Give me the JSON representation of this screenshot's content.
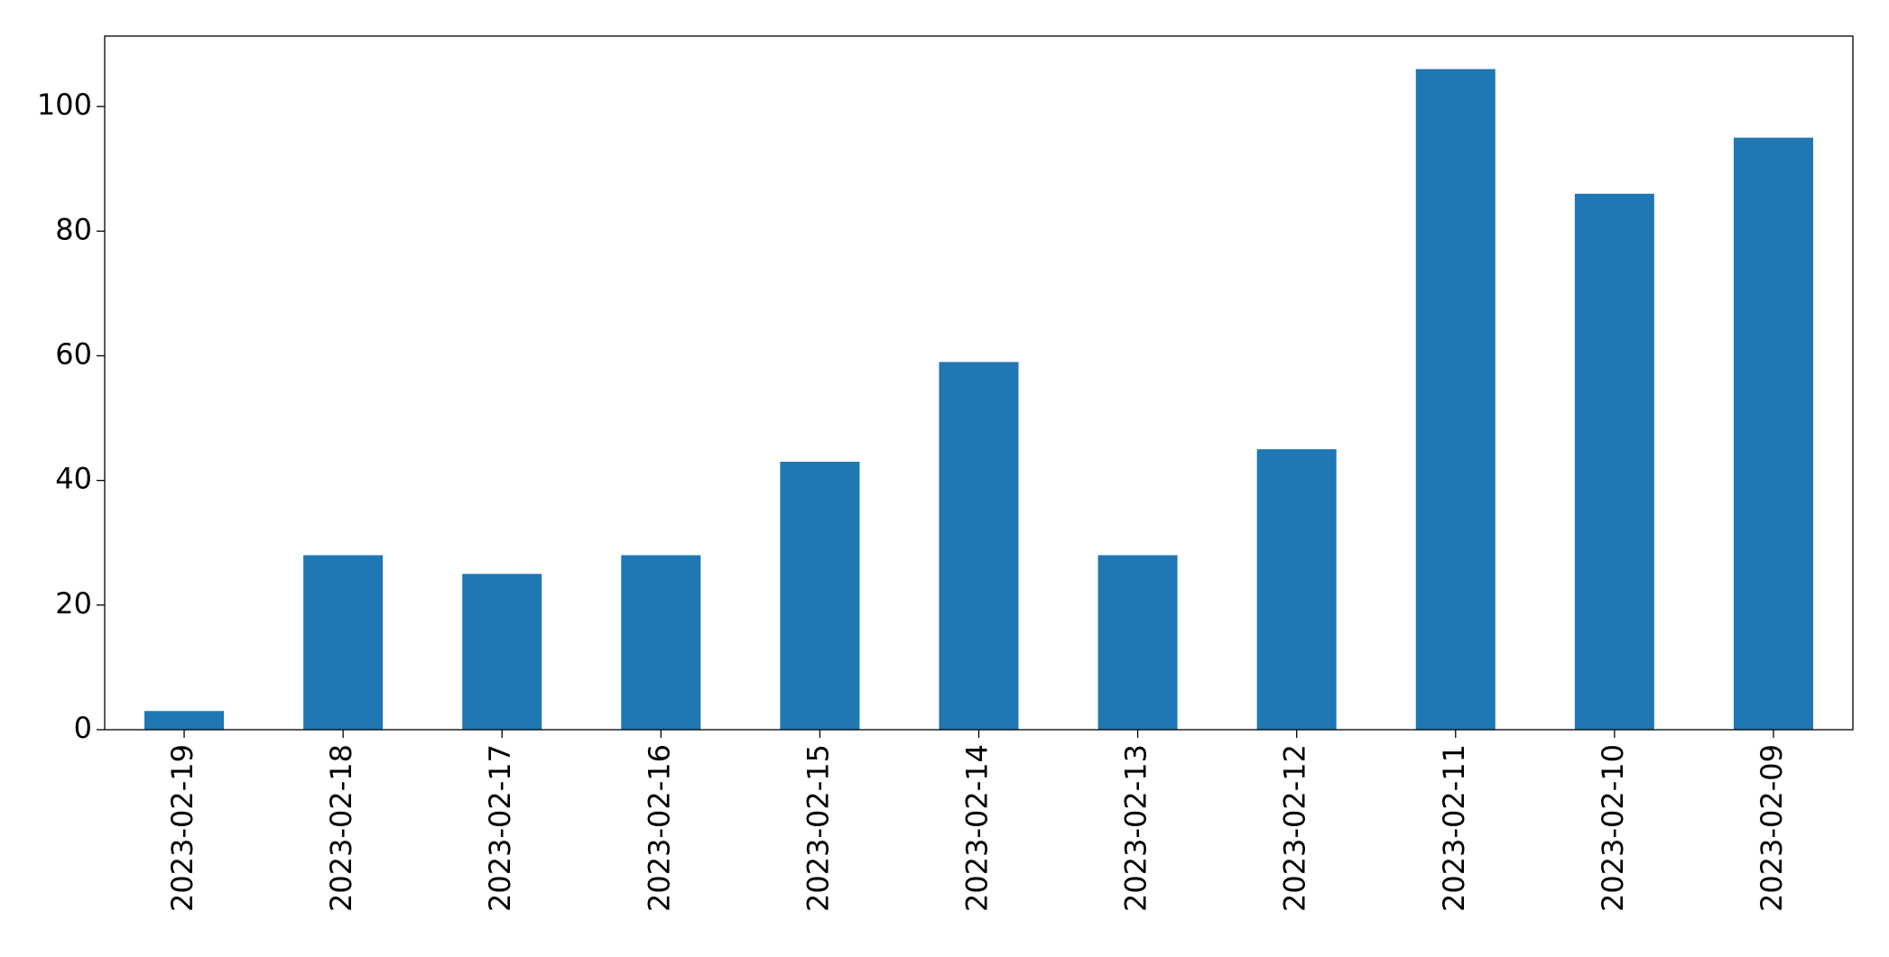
{
  "chart_data": {
    "type": "bar",
    "categories": [
      "2023-02-19",
      "2023-02-18",
      "2023-02-17",
      "2023-02-16",
      "2023-02-15",
      "2023-02-14",
      "2023-02-13",
      "2023-02-12",
      "2023-02-11",
      "2023-02-10",
      "2023-02-09"
    ],
    "values": [
      3,
      28,
      25,
      28,
      43,
      59,
      28,
      45,
      106,
      86,
      95
    ],
    "color": "#1f77b4",
    "ylim": [
      0,
      111.3
    ],
    "yticks": [
      0,
      20,
      40,
      60,
      80,
      100
    ],
    "grid": false
  }
}
